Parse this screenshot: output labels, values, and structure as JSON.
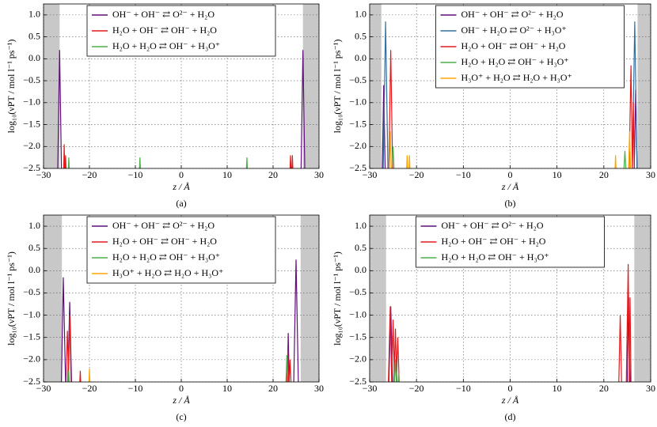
{
  "chart_data": [
    {
      "type": "line",
      "caption": "(a)",
      "x_label": "z / Å",
      "y_label": "log₁₀(νPT / mol l⁻¹ ps⁻¹)",
      "xlim": [
        -30,
        30
      ],
      "ylim": [
        -2.5,
        1.25
      ],
      "grid": true,
      "legend": "upper center",
      "xticks": [
        {
          "value": -30,
          "label": "−30"
        },
        {
          "value": -20,
          "label": "−20"
        },
        {
          "value": -10,
          "label": "−10"
        },
        0,
        10,
        20,
        30
      ],
      "yticks": [
        {
          "value": -2.5,
          "label": "−2.5"
        },
        {
          "value": -2,
          "label": "−2.0"
        },
        {
          "value": -1.5,
          "label": "−1.5"
        },
        {
          "value": -1,
          "label": "−1.0"
        },
        {
          "value": -0.5,
          "label": "−0.5"
        },
        {
          "value": 0,
          "label": "0.0"
        },
        0.5,
        {
          "value": 1,
          "label": "1.0"
        }
      ],
      "shaded": [
        [
          -30,
          -26.5
        ],
        [
          26.5,
          30
        ]
      ],
      "series": [
        {
          "name": "OH⁻ + OH⁻ ⇄ O²⁻ + H₂O",
          "color": "#5e0f78",
          "x": [
            -26.9,
            -26.5,
            -26.1,
            null,
            26.1,
            26.5,
            26.9
          ],
          "values": [
            -2.5,
            0.2,
            -2.5,
            null,
            -2.5,
            0.2,
            -2.5
          ]
        },
        {
          "name": "H₂O + OH⁻ ⇄ OH⁻ + H₂O",
          "color": "#e41a1c",
          "x": [
            -25.6,
            -25.5,
            -25.4,
            null,
            -25.3,
            -25.2,
            -25.1,
            null,
            23.7,
            23.8,
            23.9,
            null,
            24.1,
            24.2,
            24.3
          ],
          "values": [
            -2.5,
            -1.95,
            -2.5,
            null,
            -2.5,
            -2.2,
            -2.5,
            null,
            -2.5,
            -2.2,
            -2.5,
            null,
            -2.5,
            -2.2,
            -2.5
          ]
        },
        {
          "name": "H₂O + H₂O ⇄ OH⁻ + H₃O⁺",
          "color": "#4daf4a",
          "x": [
            -24.6,
            -24.5,
            -24.4,
            null,
            -9.1,
            -9,
            -8.9,
            null,
            14.2,
            14.3,
            14.4
          ],
          "values": [
            -2.5,
            -2.25,
            -2.5,
            null,
            -2.5,
            -2.25,
            -2.5,
            null,
            -2.5,
            -2.25,
            -2.5
          ]
        }
      ]
    },
    {
      "type": "line",
      "caption": "(b)",
      "x_label": "z / Å",
      "y_label": "log₁₀(νPT / mol l⁻¹ ps⁻¹)",
      "xlim": [
        -30,
        30
      ],
      "ylim": [
        -2.5,
        1.25
      ],
      "grid": true,
      "legend": "upper center",
      "xticks": [
        {
          "value": -30,
          "label": "−30"
        },
        {
          "value": -20,
          "label": "−20"
        },
        {
          "value": -10,
          "label": "−10"
        },
        0,
        10,
        20,
        30
      ],
      "yticks": [
        {
          "value": -2.5,
          "label": "−2.5"
        },
        {
          "value": -2,
          "label": "−2.0"
        },
        {
          "value": -1.5,
          "label": "−1.5"
        },
        {
          "value": -1,
          "label": "−1.0"
        },
        {
          "value": -0.5,
          "label": "−0.5"
        },
        {
          "value": 0,
          "label": "0.0"
        },
        0.5,
        {
          "value": 1,
          "label": "1.0"
        }
      ],
      "shaded": [
        [
          -30,
          -27.5
        ],
        [
          27.2,
          30
        ]
      ],
      "series": [
        {
          "name": "OH⁻ + OH⁻ ⇄ O²⁻ + H₂O",
          "color": "#5e0f78",
          "x": [
            -27.3,
            -27,
            -26.7,
            null,
            26.5,
            26.8,
            27.1
          ],
          "values": [
            -2.5,
            -0.6,
            -2.5,
            null,
            -2.5,
            -0.7,
            -2.5
          ]
        },
        {
          "name": "OH⁻ + H₂O ⇄ O²⁻ + H₃O⁺",
          "color": "#33709e",
          "x": [
            -27.1,
            -26.6,
            -26.1,
            null,
            26.1,
            26.6,
            27.1
          ],
          "values": [
            -2.5,
            0.85,
            -2.5,
            null,
            -2.5,
            0.85,
            -2.5
          ]
        },
        {
          "name": "H₂O + OH⁻ ⇄ OH⁻ + H₂O",
          "color": "#e41a1c",
          "x": [
            -25.9,
            -25.5,
            -25.1,
            null,
            25.4,
            25.8,
            26.1,
            null,
            26.1,
            26.3,
            26.5
          ],
          "values": [
            -2.5,
            0.2,
            -2.5,
            null,
            -2.5,
            -0.15,
            -2.5,
            null,
            -2.5,
            -1,
            -2.5
          ]
        },
        {
          "name": "H₂O + H₂O ⇄ OH⁻ + H₃O⁺",
          "color": "#4daf4a",
          "x": [
            -25.2,
            -25,
            -24.8,
            null,
            24.3,
            24.5,
            24.7
          ],
          "values": [
            -2.5,
            -2,
            -2.5,
            null,
            -2.5,
            -2.1,
            -2.5
          ]
        },
        {
          "name": "H₃O⁺ + H₂O ⇄ H₂O + H₃O⁺",
          "color": "#ffa500",
          "x": [
            -25.8,
            -25.6,
            -25.4,
            null,
            -22.1,
            -22,
            -21.9,
            null,
            -21.6,
            -21.5,
            -21.4,
            null,
            22.4,
            22.5,
            22.6,
            null,
            25.3,
            25.5,
            25.7
          ],
          "values": [
            -2.5,
            -1.65,
            -2.5,
            null,
            -2.5,
            -2.2,
            -2.5,
            null,
            -2.5,
            -2.2,
            -2.5,
            null,
            -2.5,
            -2.2,
            -2.5,
            null,
            -2.5,
            -1.65,
            -2.5
          ]
        }
      ]
    },
    {
      "type": "line",
      "caption": "(c)",
      "x_label": "z / Å",
      "y_label": "log₁₀(νPT / mol l⁻¹ ps⁻¹)",
      "xlim": [
        -30,
        30
      ],
      "ylim": [
        -2.5,
        1.25
      ],
      "grid": true,
      "legend": "upper center",
      "xticks": [
        {
          "value": -30,
          "label": "−30"
        },
        {
          "value": -20,
          "label": "−20"
        },
        {
          "value": -10,
          "label": "−10"
        },
        0,
        10,
        20,
        30
      ],
      "yticks": [
        {
          "value": -2.5,
          "label": "−2.5"
        },
        {
          "value": -2,
          "label": "−2.0"
        },
        {
          "value": -1.5,
          "label": "−1.5"
        },
        {
          "value": -1,
          "label": "−1.0"
        },
        {
          "value": -0.5,
          "label": "−0.5"
        },
        {
          "value": 0,
          "label": "0.0"
        },
        0.5,
        {
          "value": 1,
          "label": "1.0"
        }
      ],
      "shaded": [
        [
          -30,
          -26
        ],
        [
          26,
          30
        ]
      ],
      "series": [
        {
          "name": "OH⁻ + OH⁻ ⇄ O²⁻ + H₂O",
          "color": "#5e0f78",
          "x": [
            -26.1,
            -25.7,
            -25.2,
            null,
            -24.7,
            -24.3,
            -23.9,
            null,
            23.1,
            23.3,
            23.5,
            null,
            24.5,
            25,
            25.5
          ],
          "values": [
            -2.5,
            -0.15,
            -2.5,
            null,
            -2.5,
            -0.7,
            -2.5,
            null,
            -2.5,
            -1.4,
            -2.5,
            null,
            -2.5,
            0.25,
            -2.5
          ]
        },
        {
          "name": "H₂O + OH⁻ ⇄ OH⁻ + H₂O",
          "color": "#e41a1c",
          "x": [
            -25.1,
            -24.8,
            -24.5,
            null,
            -24.6,
            -24.3,
            -24,
            null,
            -22.1,
            -22,
            -21.9,
            null,
            23,
            23.2,
            23.4,
            null,
            23.5,
            23.7,
            23.9
          ],
          "values": [
            -2.5,
            -1.35,
            -2.5,
            null,
            -2.5,
            -1,
            -2.5,
            null,
            -2.5,
            -2.25,
            -2.5,
            null,
            -2.5,
            -1.8,
            -2.5,
            null,
            -2.5,
            -2,
            -2.5
          ]
        },
        {
          "name": "H₂O + H₂O ⇄ OH⁻ + H₃O⁺",
          "color": "#4daf4a",
          "x": [
            -24.6,
            -24.5,
            -24.4,
            null,
            22.8,
            23,
            23.2
          ],
          "values": [
            -2.5,
            -2.25,
            -2.5,
            null,
            -2.5,
            -1.9,
            -2.5
          ]
        },
        {
          "name": "H₃O⁺ + H₂O ⇄ H₂O + H₃O⁺",
          "color": "#ffa500",
          "x": [
            -20.1,
            -20,
            -19.9
          ],
          "values": [
            -2.5,
            -2.2,
            -2.5
          ]
        }
      ]
    },
    {
      "type": "line",
      "caption": "(d)",
      "x_label": "z / Å",
      "y_label": "log₁₀(νPT / mol l⁻¹ ps⁻¹)",
      "xlim": [
        -30,
        30
      ],
      "ylim": [
        -2.5,
        1.25
      ],
      "grid": true,
      "legend": "upper center",
      "xticks": [
        {
          "value": -30,
          "label": "−30"
        },
        {
          "value": -20,
          "label": "−20"
        },
        {
          "value": -10,
          "label": "−10"
        },
        0,
        10,
        20,
        30
      ],
      "yticks": [
        {
          "value": -2.5,
          "label": "−2.5"
        },
        {
          "value": -2,
          "label": "−2.0"
        },
        {
          "value": -1.5,
          "label": "−1.5"
        },
        {
          "value": -1,
          "label": "−1.0"
        },
        {
          "value": -0.5,
          "label": "−0.5"
        },
        {
          "value": 0,
          "label": "0.0"
        },
        0.5,
        {
          "value": 1,
          "label": "1.0"
        }
      ],
      "shaded": [
        [
          -30,
          -26.5
        ],
        [
          26.5,
          30
        ]
      ],
      "series": [
        {
          "name": "OH⁻ + OH⁻ ⇄ O²⁻ + H₂O",
          "color": "#5e0f78",
          "x": [
            -25.9,
            -25.5,
            -25.1,
            null,
            25,
            25.3,
            25.6
          ],
          "values": [
            -2.5,
            -0.8,
            -2.5,
            null,
            -2.5,
            -0.6,
            -2.5
          ]
        },
        {
          "name": "H₂O + OH⁻ ⇄ OH⁻ + H₂O",
          "color": "#e41a1c",
          "x": [
            -26,
            -25.6,
            -25.3,
            null,
            -25.3,
            -25,
            -24.7,
            null,
            -24.8,
            -24.5,
            -24.2,
            null,
            -24.3,
            -24,
            -23.7,
            null,
            23.2,
            23.5,
            23.8,
            null,
            24.8,
            25.2,
            25.5,
            null,
            25.4,
            25.6,
            25.8
          ],
          "values": [
            -2.5,
            -0.8,
            -2.5,
            null,
            -2.5,
            -1.1,
            -2.5,
            null,
            -2.5,
            -1.3,
            -2.5,
            null,
            -2.5,
            -1.5,
            -2.5,
            null,
            -2.5,
            -1,
            -2.5,
            null,
            -2.5,
            0.15,
            -2.5,
            null,
            -2.5,
            -0.6,
            -2.5
          ]
        },
        {
          "name": "H₂O + H₂O ⇄ OH⁻ + H₃O⁺",
          "color": "#4daf4a",
          "x": [
            -24.7,
            -24.5,
            -24.3,
            null,
            -23.9,
            -23.8,
            -23.7
          ],
          "values": [
            -2.5,
            -2,
            -2.5,
            null,
            -2.5,
            -2.3,
            -2.5
          ]
        }
      ]
    }
  ]
}
